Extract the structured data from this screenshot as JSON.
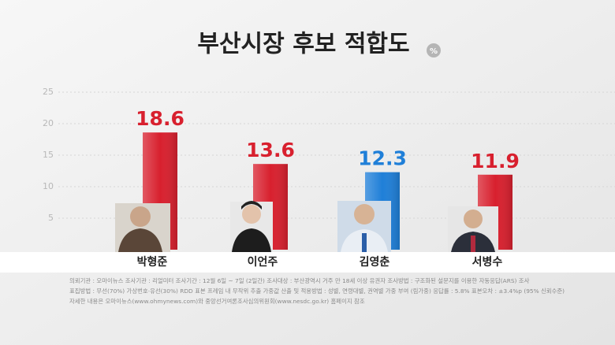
{
  "chart_data": {
    "type": "bar",
    "title": "부산시장 후보 적합도",
    "unit": "%",
    "categories": [
      "박형준",
      "이언주",
      "김영춘",
      "서병수"
    ],
    "values": [
      18.6,
      13.6,
      12.3,
      11.9
    ],
    "colors": [
      "#d8202e",
      "#d8202e",
      "#1f7fd8",
      "#d8202e"
    ],
    "ylim": [
      0,
      25
    ],
    "yticks": [
      5,
      10,
      15,
      20,
      25
    ],
    "grid": true,
    "notes": [
      "의뢰기관 : 오마이뉴스    조사기관 : 리얼미터    조사기간 : 12월 6일 ~ 7일 (2일간)    조사대상 : 부산광역시 거주 만 18세 이상 유권자    조사방법 : 구조화된 설문지를 이용한 자동응답(ARS) 조사",
      "표집방법 : 무선(70%) 가상번호·유선(30%) RDD 표본 프레임 내 무작위 추출   가중값 산출 및 적용방법 : 성별, 연령대별, 권역별 가중 부여 (림가중)    응답률 : 5.8%    표본오차 : ±3.4%p (95% 신뢰수준)",
      "자세한 내용은 오마이뉴스(www.ohmynews.com)와 중앙선거여론조사심의위원회(www.nesdc.go.kr) 홈페이지 참조"
    ]
  }
}
